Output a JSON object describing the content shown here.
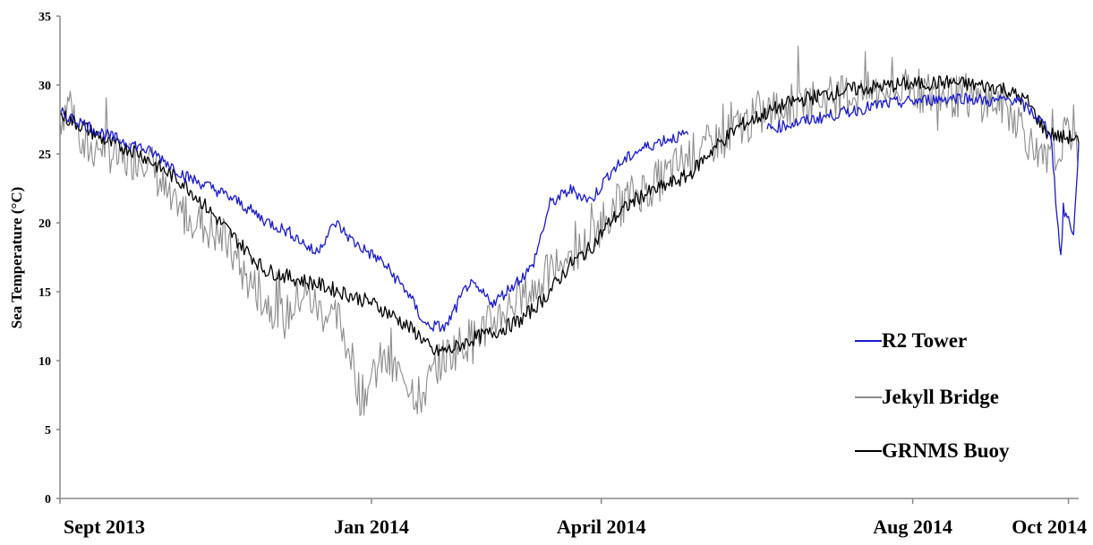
{
  "chart_data": {
    "type": "line",
    "title": "",
    "xlabel": "",
    "ylabel": "Sea Temperature (°C)",
    "ylim": [
      0,
      35
    ],
    "yticks": [
      "0",
      "5",
      "10",
      "15",
      "20",
      "25",
      "30",
      "35"
    ],
    "x_tick_labels": [
      "Sept 2013",
      "Jan 2014",
      "April 2014",
      "Aug 2014",
      "Oct 2014"
    ],
    "x_tick_dates": [
      "2013-09-01",
      "2014-01-01",
      "2014-04-01",
      "2014-08-01",
      "2014-10-01"
    ],
    "x_range": [
      "2013-09-01",
      "2014-10-05"
    ],
    "grid": false,
    "legend_position": "bottom-right",
    "series": [
      {
        "name": "R2 Tower",
        "color": "#1a1acc",
        "points": [
          [
            "2013-09-01",
            28.0
          ],
          [
            "2013-09-10",
            27.2
          ],
          [
            "2013-09-20",
            26.3
          ],
          [
            "2013-10-01",
            25.6
          ],
          [
            "2013-10-10",
            24.8
          ],
          [
            "2013-10-20",
            23.4
          ],
          [
            "2013-11-01",
            22.4
          ],
          [
            "2013-11-10",
            21.5
          ],
          [
            "2013-11-20",
            20.2
          ],
          [
            "2013-12-01",
            19.2
          ],
          [
            "2013-12-10",
            17.8
          ],
          [
            "2013-12-18",
            20.0
          ],
          [
            "2013-12-25",
            18.6
          ],
          [
            "2014-01-05",
            17.2
          ],
          [
            "2014-01-15",
            15.0
          ],
          [
            "2014-01-22",
            12.6
          ],
          [
            "2014-01-30",
            12.4
          ],
          [
            "2014-02-08",
            15.6
          ],
          [
            "2014-02-18",
            14.2
          ],
          [
            "2014-02-25",
            15.4
          ],
          [
            "2014-03-05",
            16.8
          ],
          [
            "2014-03-12",
            21.4
          ],
          [
            "2014-03-20",
            22.4
          ],
          [
            "2014-03-28",
            21.6
          ],
          [
            "2014-04-05",
            23.8
          ],
          [
            "2014-04-15",
            25.2
          ],
          [
            "2014-04-25",
            26.0
          ],
          [
            "2014-05-05",
            26.4
          ]
        ]
      },
      {
        "name": "R2 Tower",
        "color": "#1a1acc",
        "points": [
          [
            "2014-06-05",
            26.8
          ],
          [
            "2014-06-20",
            27.4
          ],
          [
            "2014-07-05",
            28.0
          ],
          [
            "2014-07-20",
            28.6
          ],
          [
            "2014-08-05",
            28.9
          ],
          [
            "2014-08-20",
            29.1
          ],
          [
            "2014-09-01",
            28.8
          ],
          [
            "2014-09-10",
            29.0
          ],
          [
            "2014-09-18",
            27.8
          ],
          [
            "2014-09-24",
            26.6
          ],
          [
            "2014-09-27",
            19.5
          ],
          [
            "2014-09-28",
            17.5
          ],
          [
            "2014-09-29",
            21.0
          ],
          [
            "2014-10-01",
            20.2
          ],
          [
            "2014-10-03",
            19.3
          ],
          [
            "2014-10-04",
            22.0
          ],
          [
            "2014-10-05",
            25.8
          ]
        ]
      },
      {
        "name": "Jekyll Bridge",
        "color": "#8c8c8c",
        "points": [
          [
            "2013-09-01",
            27.5
          ],
          [
            "2013-09-05",
            29.0
          ],
          [
            "2013-09-10",
            25.2
          ],
          [
            "2013-09-18",
            25.6
          ],
          [
            "2013-09-25",
            24.4
          ],
          [
            "2013-10-05",
            25.0
          ],
          [
            "2013-10-15",
            21.0
          ],
          [
            "2013-10-25",
            20.2
          ],
          [
            "2013-11-05",
            18.6
          ],
          [
            "2013-11-12",
            16.2
          ],
          [
            "2013-11-20",
            14.5
          ],
          [
            "2013-11-28",
            13.0
          ],
          [
            "2013-12-05",
            15.0
          ],
          [
            "2013-12-12",
            13.6
          ],
          [
            "2013-12-20",
            12.8
          ],
          [
            "2013-12-25",
            9.5
          ],
          [
            "2013-12-28",
            7.2
          ],
          [
            "2014-01-05",
            10.0
          ],
          [
            "2014-01-15",
            8.6
          ],
          [
            "2014-01-20",
            7.2
          ],
          [
            "2014-01-28",
            10.0
          ],
          [
            "2014-02-05",
            11.2
          ],
          [
            "2014-02-15",
            12.4
          ],
          [
            "2014-02-25",
            14.2
          ],
          [
            "2014-03-05",
            15.0
          ],
          [
            "2014-03-15",
            17.0
          ],
          [
            "2014-03-25",
            18.2
          ],
          [
            "2014-04-05",
            21.0
          ],
          [
            "2014-04-15",
            22.2
          ],
          [
            "2014-04-25",
            23.2
          ],
          [
            "2014-05-05",
            24.8
          ],
          [
            "2014-05-15",
            25.8
          ],
          [
            "2014-05-25",
            27.0
          ],
          [
            "2014-06-05",
            28.0
          ],
          [
            "2014-06-15",
            28.6
          ],
          [
            "2014-06-25",
            29.0
          ],
          [
            "2014-07-05",
            29.3
          ],
          [
            "2014-07-15",
            29.4
          ],
          [
            "2014-07-25",
            29.6
          ],
          [
            "2014-08-05",
            29.5
          ],
          [
            "2014-08-15",
            29.2
          ],
          [
            "2014-08-25",
            29.0
          ],
          [
            "2014-09-05",
            28.6
          ],
          [
            "2014-09-12",
            27.4
          ],
          [
            "2014-09-18",
            25.0
          ],
          [
            "2014-09-22",
            24.2
          ],
          [
            "2014-09-28",
            25.6
          ],
          [
            "2014-10-03",
            27.0
          ],
          [
            "2014-10-05",
            25.4
          ]
        ]
      },
      {
        "name": "GRNMS Buoy",
        "color": "#000000",
        "points": [
          [
            "2013-09-01",
            27.8
          ],
          [
            "2013-09-10",
            27.0
          ],
          [
            "2013-09-20",
            25.8
          ],
          [
            "2013-10-01",
            25.2
          ],
          [
            "2013-10-10",
            24.0
          ],
          [
            "2013-10-20",
            22.8
          ],
          [
            "2013-11-01",
            20.4
          ],
          [
            "2013-11-10",
            18.6
          ],
          [
            "2013-11-20",
            16.6
          ],
          [
            "2013-12-01",
            16.0
          ],
          [
            "2013-12-10",
            15.6
          ],
          [
            "2013-12-20",
            15.0
          ],
          [
            "2014-01-01",
            14.2
          ],
          [
            "2014-01-10",
            13.2
          ],
          [
            "2014-01-20",
            11.8
          ],
          [
            "2014-01-25",
            10.6
          ],
          [
            "2014-02-01",
            10.8
          ],
          [
            "2014-02-10",
            11.6
          ],
          [
            "2014-02-20",
            12.2
          ],
          [
            "2014-03-01",
            13.0
          ],
          [
            "2014-03-10",
            14.6
          ],
          [
            "2014-03-20",
            17.0
          ],
          [
            "2014-03-28",
            18.2
          ],
          [
            "2014-04-05",
            20.2
          ],
          [
            "2014-04-15",
            21.8
          ],
          [
            "2014-04-25",
            22.6
          ],
          [
            "2014-05-05",
            23.4
          ],
          [
            "2014-05-15",
            25.4
          ],
          [
            "2014-05-25",
            27.0
          ],
          [
            "2014-06-05",
            28.0
          ],
          [
            "2014-06-15",
            28.8
          ],
          [
            "2014-06-25",
            29.2
          ],
          [
            "2014-07-05",
            29.6
          ],
          [
            "2014-07-15",
            29.8
          ],
          [
            "2014-07-25",
            30.0
          ],
          [
            "2014-08-05",
            30.1
          ],
          [
            "2014-08-15",
            30.2
          ],
          [
            "2014-08-25",
            30.0
          ],
          [
            "2014-09-05",
            29.8
          ],
          [
            "2014-09-15",
            28.8
          ],
          [
            "2014-09-22",
            26.6
          ],
          [
            "2014-09-28",
            26.2
          ],
          [
            "2014-10-03",
            26.2
          ],
          [
            "2014-10-05",
            25.8
          ]
        ]
      }
    ],
    "legend": [
      {
        "label": "R2 Tower",
        "color": "#1a1acc"
      },
      {
        "label": "Jekyll Bridge",
        "color": "#8c8c8c"
      },
      {
        "label": "GRNMS Buoy",
        "color": "#000000"
      }
    ]
  }
}
